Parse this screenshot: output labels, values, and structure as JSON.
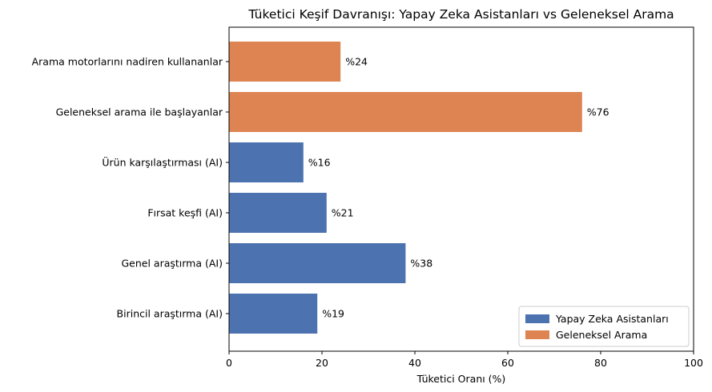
{
  "chart_data": {
    "type": "bar",
    "orientation": "horizontal",
    "title": "Tüketici Keşif Davranışı: Yapay Zeka Asistanları vs Geleneksel Arama",
    "xlabel": "Tüketici Oranı (%)",
    "ylabel": "",
    "xlim": [
      0,
      100
    ],
    "xticks": [
      "0",
      "20",
      "40",
      "60",
      "80",
      "100"
    ],
    "xtick_values": [
      0,
      20,
      40,
      60,
      80,
      100
    ],
    "grid": false,
    "legend_position": "bottom-right",
    "categories": [
      "Birincil araştırma (AI)",
      "Genel araştırma (AI)",
      "Fırsat keşfi (AI)",
      "Ürün karşılaştırması (AI)",
      "Geleneksel arama ile başlayanlar",
      "Arama motorlarını nadiren kullananlar"
    ],
    "values": [
      19,
      38,
      21,
      16,
      76,
      24
    ],
    "data_labels": [
      "%19",
      "%38",
      "%21",
      "%16",
      "%76",
      "%24"
    ],
    "series_index": [
      0,
      0,
      0,
      0,
      1,
      1
    ],
    "series": [
      {
        "name": "Yapay Zeka Asistanları",
        "color": "#4c72b0"
      },
      {
        "name": "Geleneksel Arama",
        "color": "#dd8452"
      }
    ]
  }
}
